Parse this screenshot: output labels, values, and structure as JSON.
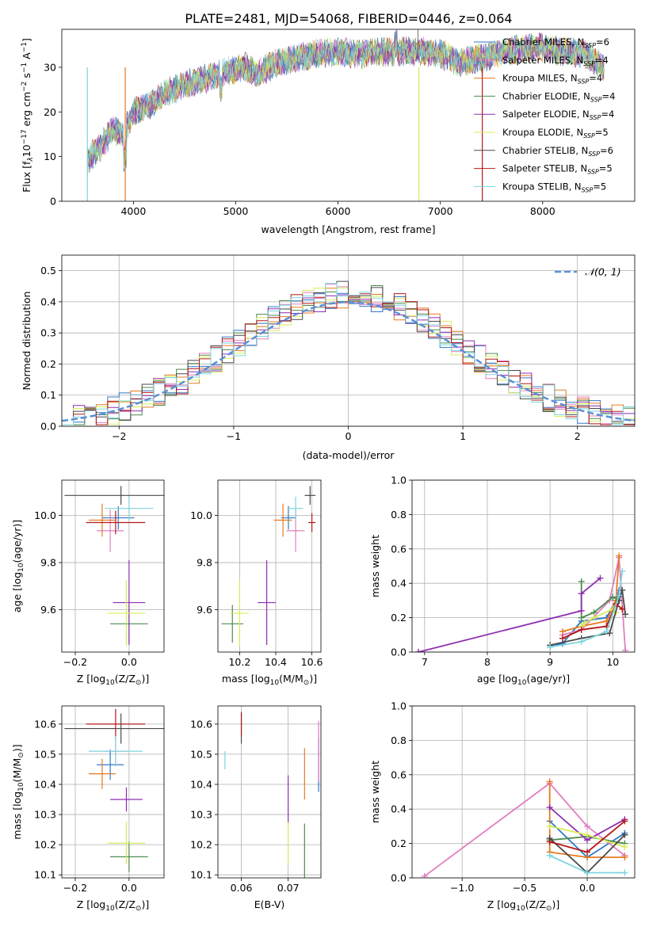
{
  "colors": {
    "Chabrier MILES": "#2f78c8",
    "Salpeter MILES": "#e07fbf",
    "Kroupa MILES": "#e57a20",
    "Chabrier ELODIE": "#4f8a4f",
    "Salpeter ELODIE": "#8e2fb0",
    "Kroupa ELODIE": "#d6ec5a",
    "Chabrier STELIB": "#4a4a4a",
    "Salpeter STELIB": "#b41818",
    "Kroupa STELIB": "#7dd4dc",
    "gaussian": "#5b8fd8"
  },
  "chart_data": [
    {
      "type": "line",
      "title": "PLATE=2481, MJD=54068, FIBERID=0446, z=0.064",
      "xlabel": "wavelength [Angstrom, rest frame]",
      "ylabel": "Flux [f",
      "ylabel_sub": "λ",
      "ylabel_rest": "10",
      "ylabel_exp": "−17",
      "ylabel_units": " erg cm",
      "ylabel_exp2": "−2",
      "ylabel_units2": " s",
      "ylabel_exp3": "−1",
      "ylabel_units3": " A",
      "ylabel_exp4": "−1",
      "ylabel_end": "]",
      "xlim": [
        3300,
        8900
      ],
      "ylim": [
        0,
        38.5
      ],
      "xticks": [
        4000,
        5000,
        6000,
        7000,
        8000
      ],
      "yticks": [
        0,
        10,
        20,
        30
      ],
      "continuum": {
        "x": [
          3550,
          3700,
          3800,
          3900,
          4000,
          4100,
          4200,
          4300,
          4500,
          4700,
          4900,
          5100,
          5200,
          5400,
          5600,
          5800,
          6000,
          6200,
          6400,
          6600,
          6800,
          7000,
          7200,
          7400,
          7600,
          7800,
          8000,
          8200,
          8400,
          8600
        ],
        "y": [
          9,
          13,
          16,
          15,
          20,
          21,
          22,
          24,
          26,
          27.5,
          29,
          30,
          28.5,
          31,
          32,
          33,
          33.5,
          33,
          33.5,
          33.5,
          33.5,
          33,
          31,
          32,
          33.5,
          34,
          34.5,
          33.5,
          33,
          30
        ]
      },
      "legend": [
        {
          "label": "Chabrier MILES, N",
          "sub": "SSP",
          "suffix": "=6"
        },
        {
          "label": "Salpeter MILES, N",
          "sub": "SSP",
          "suffix": "=4"
        },
        {
          "label": "Kroupa MILES, N",
          "sub": "SSP",
          "suffix": "=4"
        },
        {
          "label": "Chabrier ELODIE, N",
          "sub": "SSP",
          "suffix": "=4"
        },
        {
          "label": "Salpeter ELODIE, N",
          "sub": "SSP",
          "suffix": "=4"
        },
        {
          "label": "Kroupa ELODIE, N",
          "sub": "SSP",
          "suffix": "=5"
        },
        {
          "label": "Chabrier STELIB, N",
          "sub": "SSP",
          "suffix": "=6"
        },
        {
          "label": "Salpeter STELIB, N",
          "sub": "SSP",
          "suffix": "=5"
        },
        {
          "label": "Kroupa STELIB, N",
          "sub": "SSP",
          "suffix": "=5"
        }
      ],
      "legend_placement": "top-right"
    },
    {
      "type": "histogram",
      "xlabel": "(data-model)/error",
      "ylabel": "Normed distribution",
      "xlim": [
        -2.5,
        2.5
      ],
      "ylim": [
        0,
        0.55
      ],
      "xticks": [
        -2,
        -1,
        0,
        1,
        2
      ],
      "xticklabels": [
        "−2",
        "−1",
        "0",
        "1",
        "2"
      ],
      "yticks": [
        0.0,
        0.1,
        0.2,
        0.3,
        0.4,
        0.5
      ],
      "yticklabels": [
        "0.0",
        "0.1",
        "0.2",
        "0.3",
        "0.4",
        "0.5"
      ],
      "grid": true,
      "bin_width": 0.1,
      "legend_label": "𝒩(0, 1)",
      "legend_placement": "top-right"
    },
    {
      "type": "scatter",
      "name": "age-vs-Z",
      "xlabel": "Z [log",
      "xlabel_sub": "10",
      "xlabel_rest": "(Z/Z",
      "xlabel_sub2": "⊙",
      "xlabel_end": ")]",
      "ylabel": "age  [log",
      "ylabel_sub": "10",
      "ylabel_rest": "(age/yr)]",
      "xlim": [
        -0.25,
        0.13
      ],
      "ylim": [
        9.42,
        10.15
      ],
      "xticks": [
        -0.2,
        0.0
      ],
      "xticklabels": [
        "−0.2",
        "0.0"
      ],
      "yticks": [
        9.6,
        9.8,
        10.0
      ],
      "yticklabels": [
        "9.6",
        "9.8",
        "10.0"
      ],
      "points": [
        {
          "series": "Chabrier MILES",
          "x": -0.04,
          "y": 9.99,
          "xerr": 0.06,
          "yerr": 0.05
        },
        {
          "series": "Salpeter MILES",
          "x": -0.07,
          "y": 9.935,
          "xerr": 0.05,
          "yerr": 0.09
        },
        {
          "series": "Kroupa MILES",
          "x": -0.1,
          "y": 9.98,
          "xerr": 0.05,
          "yerr": 0.07
        },
        {
          "series": "Chabrier ELODIE",
          "x": 0.0,
          "y": 9.54,
          "xerr": 0.07,
          "yerr": 0.08
        },
        {
          "series": "Salpeter ELODIE",
          "x": 0.0,
          "y": 9.63,
          "xerr": 0.06,
          "yerr": 0.18
        },
        {
          "series": "Kroupa ELODIE",
          "x": -0.01,
          "y": 9.585,
          "xerr": 0.07,
          "yerr": 0.14
        },
        {
          "series": "Chabrier STELIB",
          "x": -0.03,
          "y": 10.085,
          "xerr": 0.21,
          "yerr": 0.04
        },
        {
          "series": "Salpeter STELIB",
          "x": -0.05,
          "y": 9.97,
          "xerr": 0.11,
          "yerr": 0.05
        },
        {
          "series": "Kroupa STELIB",
          "x": 0.0,
          "y": 10.03,
          "xerr": 0.09,
          "yerr": 0.05
        }
      ]
    },
    {
      "type": "scatter",
      "name": "age-vs-mass",
      "xlabel": "mass [log",
      "xlabel_sub": "10",
      "xlabel_rest": "(M/M",
      "xlabel_sub2": "⊙",
      "xlabel_end": ")]",
      "xlim": [
        10.08,
        10.65
      ],
      "ylim": [
        9.42,
        10.15
      ],
      "xticks": [
        10.2,
        10.4,
        10.6
      ],
      "xticklabels": [
        "10.2",
        "10.4",
        "10.6"
      ],
      "yticks": [
        9.6,
        9.8,
        10.0
      ],
      "yticklabels": [
        "9.6",
        "9.8",
        "10.0"
      ],
      "points": [
        {
          "series": "Chabrier MILES",
          "x": 10.47,
          "y": 9.99,
          "xerr": 0.04,
          "yerr": 0.05
        },
        {
          "series": "Salpeter MILES",
          "x": 10.51,
          "y": 9.935,
          "xerr": 0.05,
          "yerr": 0.09
        },
        {
          "series": "Kroupa MILES",
          "x": 10.44,
          "y": 9.98,
          "xerr": 0.05,
          "yerr": 0.07
        },
        {
          "series": "Chabrier ELODIE",
          "x": 10.16,
          "y": 9.54,
          "xerr": 0.06,
          "yerr": 0.08
        },
        {
          "series": "Salpeter ELODIE",
          "x": 10.35,
          "y": 9.63,
          "xerr": 0.05,
          "yerr": 0.18
        },
        {
          "series": "Kroupa ELODIE",
          "x": 10.2,
          "y": 9.585,
          "xerr": 0.05,
          "yerr": 0.14
        },
        {
          "series": "Chabrier STELIB",
          "x": 10.59,
          "y": 10.085,
          "xerr": 0.03,
          "yerr": 0.04
        },
        {
          "series": "Salpeter STELIB",
          "x": 10.6,
          "y": 9.97,
          "xerr": 0.02,
          "yerr": 0.04
        },
        {
          "series": "Kroupa STELIB",
          "x": 10.51,
          "y": 10.03,
          "xerr": 0.04,
          "yerr": 0.05
        }
      ]
    },
    {
      "type": "line",
      "name": "mass-weight-vs-age",
      "xlabel": "age  [log",
      "xlabel_sub": "10",
      "xlabel_rest": "(age/yr)]",
      "ylabel": "mass weight",
      "xlim": [
        6.8,
        10.35
      ],
      "ylim": [
        0,
        1.0
      ],
      "xticks": [
        7,
        8,
        9,
        10
      ],
      "yticks": [
        0.0,
        0.2,
        0.4,
        0.6,
        0.8,
        1.0
      ],
      "yticklabels": [
        "0.0",
        "0.2",
        "0.4",
        "0.6",
        "0.8",
        "1.0"
      ],
      "series": [
        {
          "name": "Chabrier MILES",
          "x": [
            9.0,
            9.2,
            9.5,
            9.9,
            10.05,
            10.1
          ],
          "y": [
            0.03,
            0.05,
            0.18,
            0.2,
            0.3,
            0.36
          ]
        },
        {
          "name": "Salpeter MILES",
          "x": [
            9.2,
            9.5,
            9.95,
            10.1,
            10.2
          ],
          "y": [
            0.1,
            0.13,
            0.3,
            0.55,
            0.01
          ]
        },
        {
          "name": "Kroupa MILES",
          "x": [
            9.2,
            9.5,
            9.9,
            10.05,
            10.1
          ],
          "y": [
            0.12,
            0.15,
            0.18,
            0.3,
            0.56
          ]
        },
        {
          "name": "Chabrier ELODIE",
          "x": [
            9.5,
            9.5,
            9.7,
            10.0,
            10.1
          ],
          "y": [
            0.41,
            0.2,
            0.23,
            0.32,
            0.3
          ]
        },
        {
          "name": "Salpeter ELODIE",
          "x": [
            6.9,
            9.5,
            9.5,
            9.8
          ],
          "y": [
            0.0,
            0.24,
            0.34,
            0.43
          ]
        },
        {
          "name": "Kroupa ELODIE",
          "x": [
            9.5,
            9.55,
            9.7,
            10.0,
            10.05
          ],
          "y": [
            0.15,
            0.17,
            0.2,
            0.25,
            0.23
          ]
        },
        {
          "name": "Chabrier STELIB",
          "x": [
            9.0,
            9.5,
            9.95,
            10.1,
            10.15,
            10.2
          ],
          "y": [
            0.04,
            0.08,
            0.11,
            0.3,
            0.36,
            0.22
          ]
        },
        {
          "name": "Salpeter STELIB",
          "x": [
            9.2,
            9.5,
            9.9,
            10.05,
            10.15
          ],
          "y": [
            0.08,
            0.13,
            0.15,
            0.28,
            0.25
          ]
        },
        {
          "name": "Kroupa STELIB",
          "x": [
            9.0,
            9.5,
            9.9,
            10.1,
            10.15
          ],
          "y": [
            0.03,
            0.06,
            0.12,
            0.33,
            0.47
          ]
        }
      ]
    },
    {
      "type": "scatter",
      "name": "mass-vs-Z",
      "xlabel": "Z [log",
      "xlabel_sub": "10",
      "xlabel_rest": "(Z/Z",
      "xlabel_sub2": "⊙",
      "xlabel_end": ")]",
      "ylabel": "mass [log",
      "ylabel_sub": "10",
      "ylabel_rest": "(M/M",
      "ylabel_sub2": "⊙",
      "ylabel_end": ")]",
      "xlim": [
        -0.25,
        0.13
      ],
      "ylim": [
        10.09,
        10.66
      ],
      "xticks": [
        -0.2,
        0.0
      ],
      "xticklabels": [
        "−0.2",
        "0.0"
      ],
      "yticks": [
        10.1,
        10.2,
        10.3,
        10.4,
        10.5,
        10.6
      ],
      "yticklabels": [
        "10.1",
        "10.2",
        "10.3",
        "10.4",
        "10.5",
        "10.6"
      ],
      "points": [
        {
          "series": "Chabrier MILES",
          "x": -0.07,
          "y": 10.465,
          "xerr": 0.05,
          "yerr": 0.05
        },
        {
          "series": "Salpeter MILES",
          "x": -0.05,
          "y": 10.51,
          "xerr": 0.04,
          "yerr": 0.05
        },
        {
          "series": "Kroupa MILES",
          "x": -0.1,
          "y": 10.435,
          "xerr": 0.05,
          "yerr": 0.05
        },
        {
          "series": "Chabrier ELODIE",
          "x": 0.0,
          "y": 10.16,
          "xerr": 0.07,
          "yerr": 0.05
        },
        {
          "series": "Salpeter ELODIE",
          "x": -0.01,
          "y": 10.35,
          "xerr": 0.06,
          "yerr": 0.04
        },
        {
          "series": "Kroupa ELODIE",
          "x": -0.01,
          "y": 10.205,
          "xerr": 0.07,
          "yerr": 0.07
        },
        {
          "series": "Chabrier STELIB",
          "x": -0.03,
          "y": 10.585,
          "xerr": 0.21,
          "yerr": 0.05
        },
        {
          "series": "Salpeter STELIB",
          "x": -0.05,
          "y": 10.6,
          "xerr": 0.11,
          "yerr": 0.05
        },
        {
          "series": "Kroupa STELIB",
          "x": -0.05,
          "y": 10.51,
          "xerr": 0.1,
          "yerr": 0.05
        }
      ]
    },
    {
      "type": "scatter",
      "name": "mass-vs-EBV",
      "xlabel": "E(B-V)",
      "xlim": [
        0.055,
        0.077
      ],
      "ylim": [
        10.09,
        10.66
      ],
      "xticks": [
        0.06,
        0.07
      ],
      "xticklabels": [
        "0.06",
        "0.07"
      ],
      "yticks": [
        10.1,
        10.2,
        10.3,
        10.4,
        10.5,
        10.6
      ],
      "yticklabels": [
        "10.1",
        "10.2",
        "10.3",
        "10.4",
        "10.5",
        "10.6"
      ],
      "points": [
        {
          "series": "Chabrier MILES",
          "x": 0.0765,
          "y": 10.465,
          "xerr": 0,
          "yerr": 0.09
        },
        {
          "series": "Salpeter MILES",
          "x": 0.0765,
          "y": 10.51,
          "xerr": 0,
          "yerr": 0.1
        },
        {
          "series": "Kroupa MILES",
          "x": 0.0735,
          "y": 10.435,
          "xerr": 0,
          "yerr": 0.085
        },
        {
          "series": "Chabrier ELODIE",
          "x": 0.0735,
          "y": 10.16,
          "xerr": 0,
          "yerr": 0.11
        },
        {
          "series": "Salpeter ELODIE",
          "x": 0.07,
          "y": 10.35,
          "xerr": 0,
          "yerr": 0.08
        },
        {
          "series": "Kroupa ELODIE",
          "x": 0.07,
          "y": 10.205,
          "xerr": 0,
          "yerr": 0.07
        },
        {
          "series": "Chabrier STELIB",
          "x": 0.06,
          "y": 10.585,
          "xerr": 0,
          "yerr": 0.05
        },
        {
          "series": "Salpeter STELIB",
          "x": 0.06,
          "y": 10.6,
          "xerr": 0,
          "yerr": 0.04
        },
        {
          "series": "Kroupa STELIB",
          "x": 0.0565,
          "y": 10.48,
          "xerr": 0,
          "yerr": 0.03
        }
      ]
    },
    {
      "type": "line",
      "name": "mass-weight-vs-Z",
      "xlabel": "Z [log",
      "xlabel_sub": "10",
      "xlabel_rest": "(Z/Z",
      "xlabel_sub2": "⊙",
      "xlabel_end": ")]",
      "ylabel": "mass weight",
      "xlim": [
        -1.4,
        0.38
      ],
      "ylim": [
        0,
        1.0
      ],
      "xticks": [
        -1.0,
        -0.5,
        0.0
      ],
      "xticklabels": [
        "−1.0",
        "−0.5",
        "0.0"
      ],
      "yticks": [
        0.0,
        0.2,
        0.4,
        0.6,
        0.8,
        1.0
      ],
      "yticklabels": [
        "0.0",
        "0.2",
        "0.4",
        "0.6",
        "0.8",
        "1.0"
      ],
      "series": [
        {
          "name": "Chabrier MILES",
          "x": [
            -0.3,
            0.0,
            0.3
          ],
          "y": [
            0.33,
            0.12,
            0.26
          ]
        },
        {
          "name": "Salpeter MILES",
          "x": [
            -1.3,
            -0.3,
            0.0,
            0.3
          ],
          "y": [
            0.01,
            0.55,
            0.3,
            0.13
          ]
        },
        {
          "name": "Kroupa MILES",
          "x": [
            -0.3,
            -0.3,
            0.0,
            0.3
          ],
          "y": [
            0.56,
            0.15,
            0.12,
            0.12
          ]
        },
        {
          "name": "Chabrier ELODIE",
          "x": [
            -0.3,
            0.0,
            0.3
          ],
          "y": [
            0.22,
            0.24,
            0.2
          ]
        },
        {
          "name": "Salpeter ELODIE",
          "x": [
            -0.3,
            0.0,
            0.3
          ],
          "y": [
            0.41,
            0.22,
            0.34
          ]
        },
        {
          "name": "Kroupa ELODIE",
          "x": [
            -0.3,
            0.0,
            0.3
          ],
          "y": [
            0.3,
            0.25,
            0.18
          ]
        },
        {
          "name": "Chabrier STELIB",
          "x": [
            -0.3,
            0.0,
            0.3
          ],
          "y": [
            0.23,
            0.03,
            0.25
          ]
        },
        {
          "name": "Salpeter STELIB",
          "x": [
            -0.3,
            0.0,
            0.3
          ],
          "y": [
            0.21,
            0.15,
            0.33
          ]
        },
        {
          "name": "Kroupa STELIB",
          "x": [
            -0.3,
            0.0,
            0.3
          ],
          "y": [
            0.13,
            0.03,
            0.03
          ]
        }
      ]
    }
  ]
}
